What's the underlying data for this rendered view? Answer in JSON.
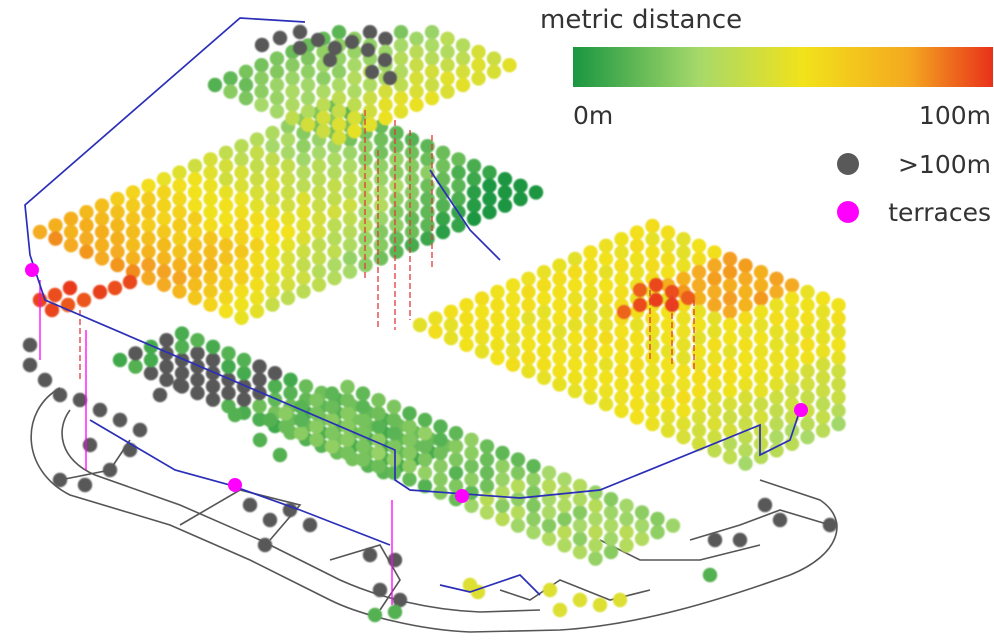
{
  "legend": {
    "title": "metric distance",
    "scale_min_label": "0m",
    "scale_max_label": "100m",
    "scale_colors": [
      "#1a9641",
      "#a6d96a",
      "#f2e21a",
      "#f4a820",
      "#e8311a"
    ],
    "beyond_label": ">100m",
    "beyond_color": "#595959",
    "terraces_label": "terraces",
    "terraces_color": "#ff00ff"
  },
  "outline_color": "#2b2fb8",
  "path_color": "#555555",
  "connector_color": "#e03a3a"
}
